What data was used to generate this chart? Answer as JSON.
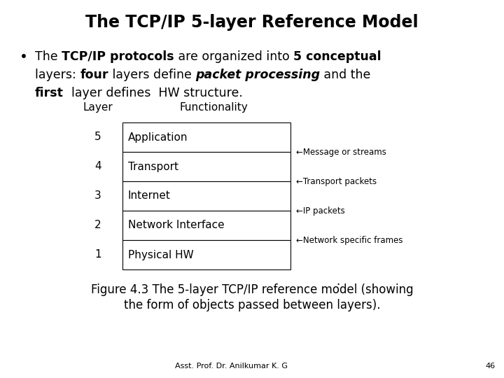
{
  "title": "The TCP/IP 5-layer Reference Model",
  "table_header_layer": "Layer",
  "table_header_func": "Functionality",
  "layers": [
    {
      "num": "5",
      "name": "Application"
    },
    {
      "num": "4",
      "name": "Transport"
    },
    {
      "num": "3",
      "name": "Internet"
    },
    {
      "num": "2",
      "name": "Network Interface"
    },
    {
      "num": "1",
      "name": "Physical HW"
    }
  ],
  "ann_texts": [
    "←Message or streams",
    "←Transport packets",
    "←IP packets",
    "←Network specific frames"
  ],
  "caption_line1": "Figure 4.3 The 5-layer TCP/IP reference model (showing",
  "caption_line2": "the form of objects passed between layers).",
  "footer": "Asst. Prof. Dr. Anilkumar K. G",
  "page_num": "46",
  "bg_color": "#ffffff",
  "text_color": "#000000",
  "title_fontsize": 17,
  "body_fontsize": 12.5,
  "table_fontsize": 11,
  "ann_fontsize": 8.5,
  "caption_fontsize": 12,
  "footer_fontsize": 8
}
